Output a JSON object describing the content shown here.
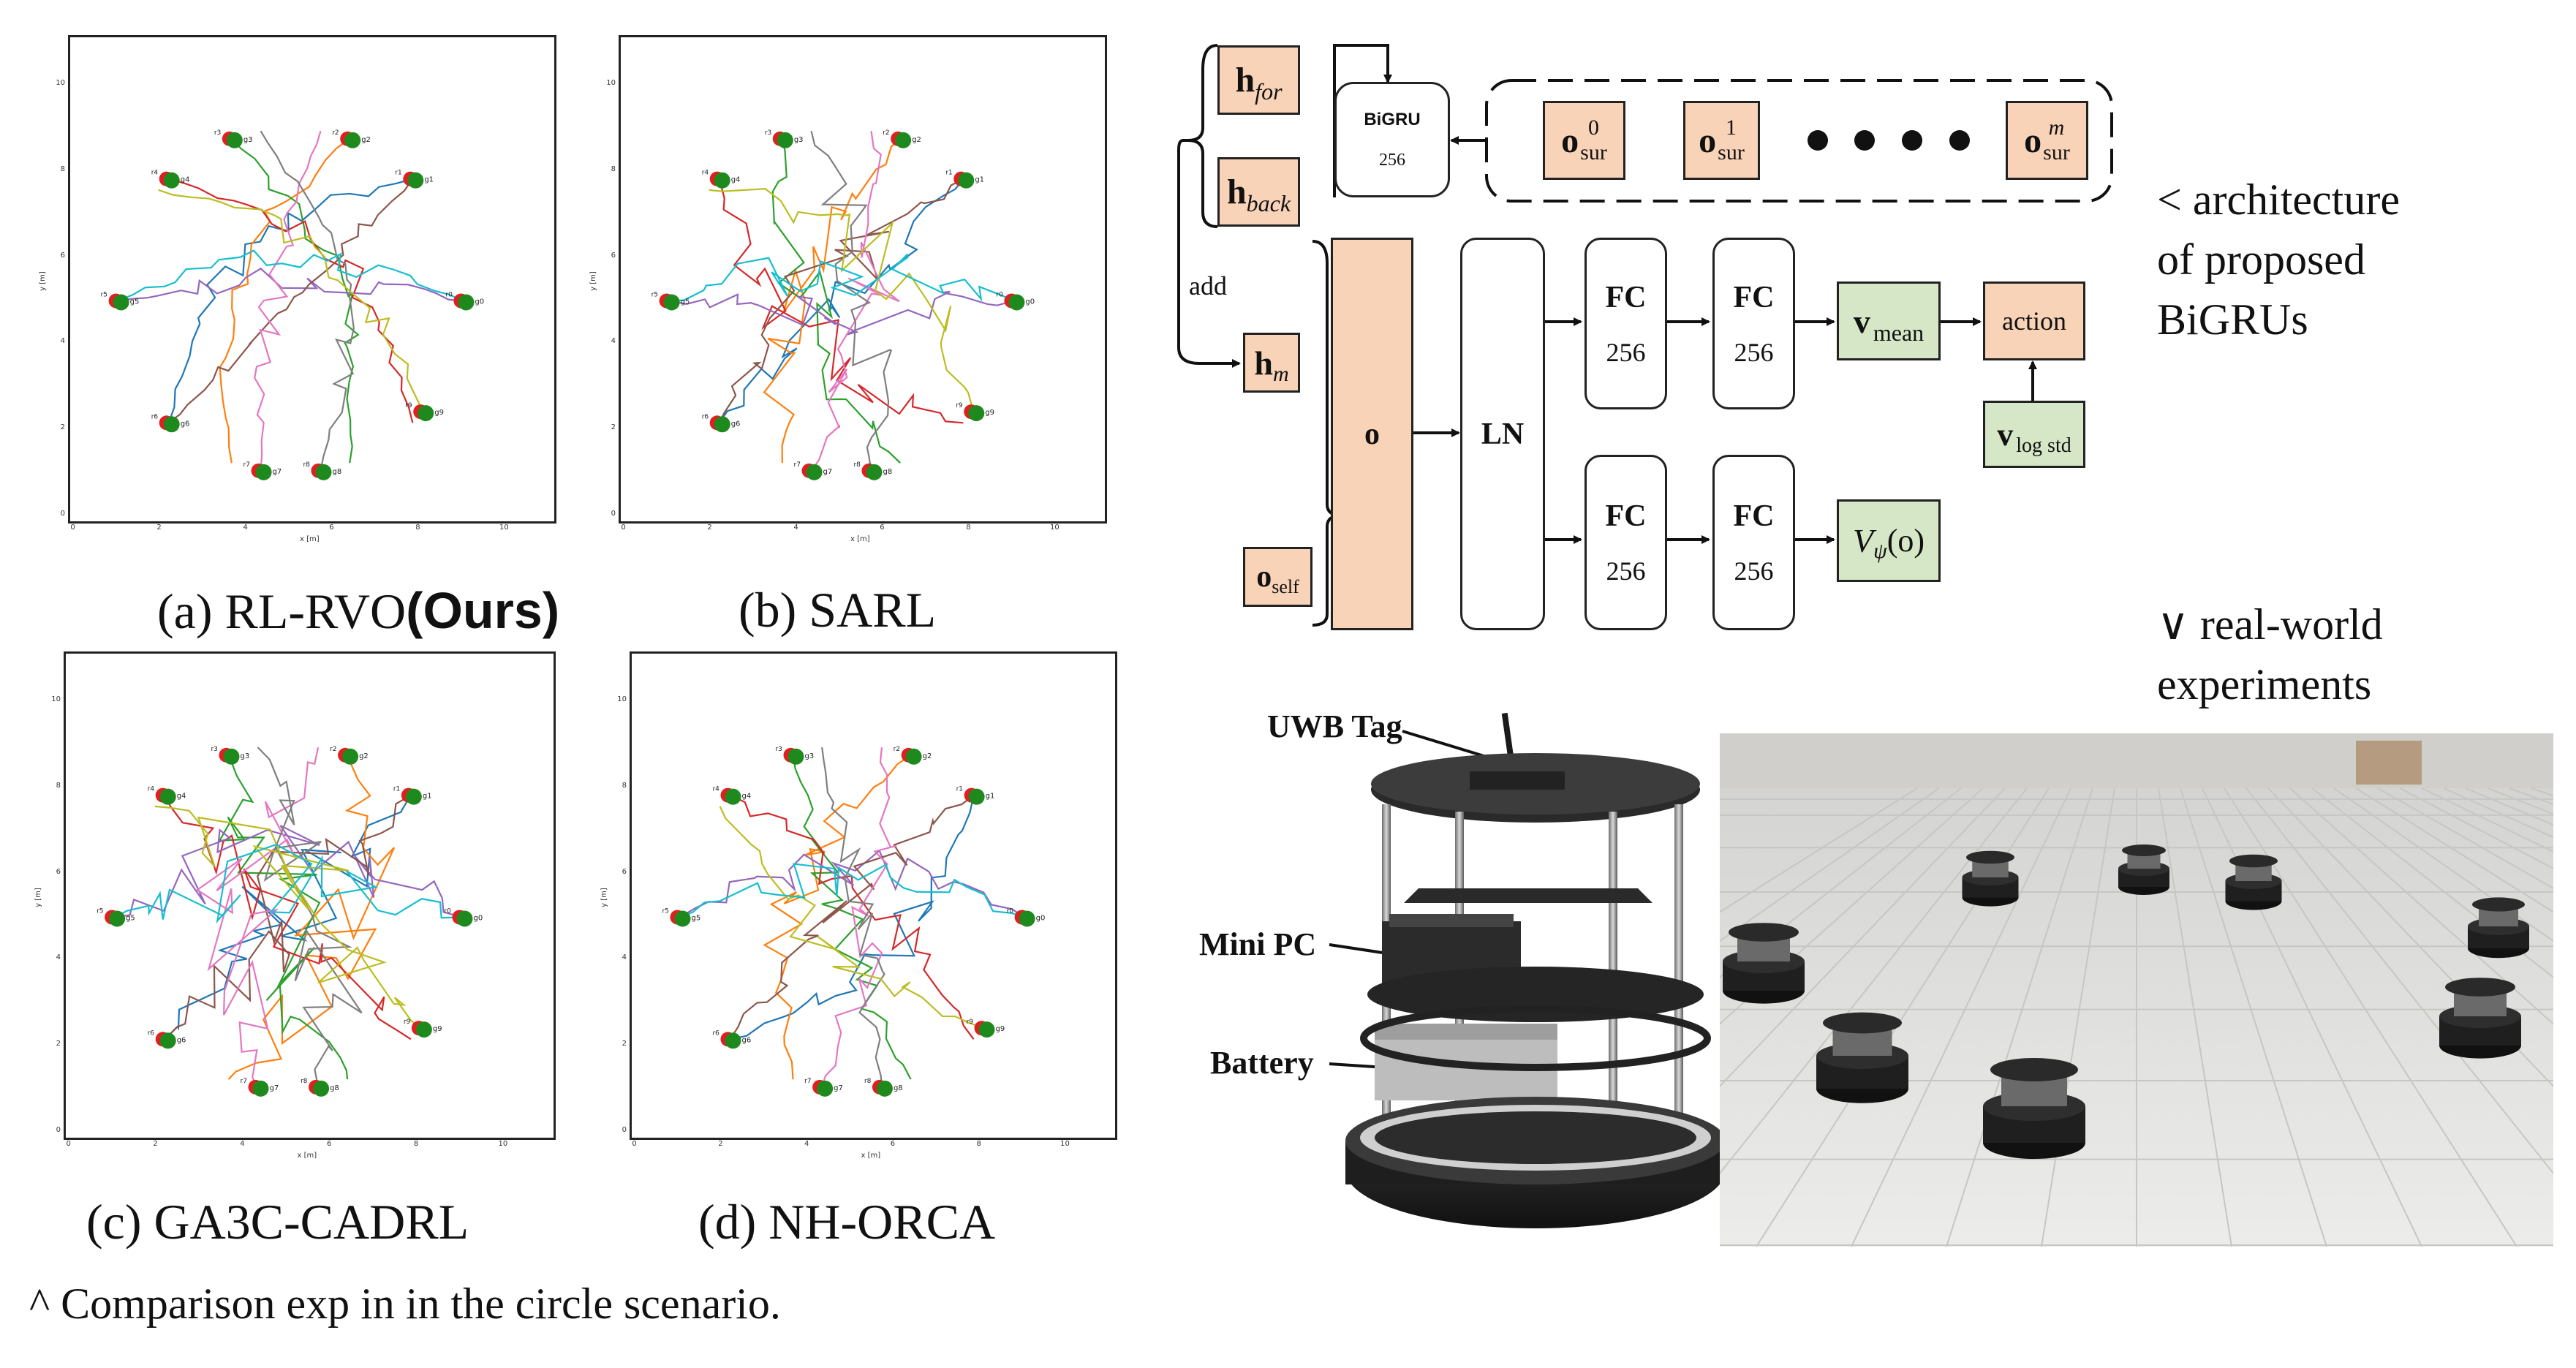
{
  "plots": [
    {
      "id": "a",
      "caption_prefix": "(a) RL-RVO",
      "caption_bold": "(Ours)",
      "xlabel": "x [m]",
      "ylabel": "y [m]"
    },
    {
      "id": "b",
      "caption_prefix": "(b) SARL",
      "caption_bold": "",
      "xlabel": "x [m]",
      "ylabel": "y [m]"
    },
    {
      "id": "c",
      "caption_prefix": "(c) GA3C-CADRL",
      "caption_bold": "",
      "xlabel": "x [m]",
      "ylabel": "y [m]"
    },
    {
      "id": "d",
      "caption_prefix": "(d) NH-ORCA",
      "caption_bold": "",
      "xlabel": "x [m]",
      "ylabel": "y [m]"
    }
  ],
  "ticks": {
    "y": [
      "0",
      "2",
      "4",
      "6",
      "8",
      "10"
    ],
    "x": [
      "0",
      "2",
      "4",
      "6",
      "8",
      "10"
    ]
  },
  "robot_labels": [
    "r1",
    "r2",
    "r3",
    "r4",
    "r5",
    "r6",
    "r7",
    "r8",
    "r9",
    "r0"
  ],
  "goal_labels": [
    "g1",
    "g2",
    "g3",
    "g4",
    "g5",
    "g6",
    "g7",
    "g8",
    "g9",
    "g0"
  ],
  "trajectory_colors": [
    "#1f77b4",
    "#ff7f0e",
    "#2ca02c",
    "#d62728",
    "#9467bd",
    "#8c564b",
    "#e377c2",
    "#7f7f7f",
    "#bcbd22",
    "#17becf"
  ],
  "notes": {
    "bottom_left": "^ Comparison exp in in the circle scenario.",
    "arch_line1": "< architecture",
    "arch_line2": "of proposed",
    "arch_line3": "BiGRUs",
    "rw_line1": "∨ real-world",
    "rw_line2": "experiments"
  },
  "diagram": {
    "h": "h",
    "for_sub": "for",
    "back_sub": "back",
    "m_sub": "m",
    "bigru_label": "BiGRU",
    "bigru_units": "256",
    "o": "o",
    "sur_sub": "sur",
    "sup0": "0",
    "sup1": "1",
    "supm": "m",
    "add": "add",
    "o_big": "o",
    "self_sub": "self",
    "ln": "LN",
    "fc": "FC",
    "fc_units": "256",
    "v": "v",
    "mean_sub": "mean",
    "logstd_sub": "log std",
    "action": "action",
    "value_V": "V",
    "value_psi": "ψ",
    "value_arg": "(o)"
  },
  "robot_labels_photo": {
    "uwb": "UWB Tag",
    "minipc": "Mini PC",
    "battery": "Battery"
  }
}
